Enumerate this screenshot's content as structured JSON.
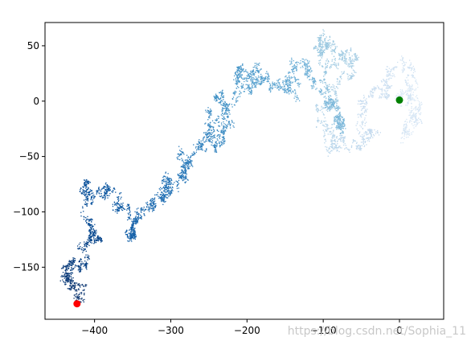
{
  "chart_data": {
    "type": "scatter",
    "title": "",
    "xlabel": "",
    "ylabel": "",
    "xlim": [
      -465,
      58
    ],
    "ylim": [
      -197,
      71
    ],
    "grid": false,
    "xticks": [
      -400,
      -300,
      -200,
      -100,
      0
    ],
    "yticks": [
      -150,
      -100,
      -50,
      0,
      50
    ],
    "xtick_labels": [
      "−400",
      "−300",
      "−200",
      "−100",
      "0"
    ],
    "ytick_labels": [
      "−150",
      "−100",
      "−50",
      "0",
      "50"
    ],
    "point_count": 5000,
    "colormap": "Blues",
    "colors": {
      "start_marker": "#008000",
      "end_marker": "#ff0000",
      "path_light": "#deebf7",
      "path_dark": "#08306b"
    },
    "start_point": {
      "x": 0,
      "y": 1
    },
    "end_point": {
      "x": -423,
      "y": -183
    },
    "path_waypoints": [
      {
        "x": 0,
        "y": 1
      },
      {
        "x": 18,
        "y": 8
      },
      {
        "x": 22,
        "y": -12
      },
      {
        "x": 8,
        "y": -30
      },
      {
        "x": 15,
        "y": 20
      },
      {
        "x": -8,
        "y": 25
      },
      {
        "x": -25,
        "y": 5
      },
      {
        "x": -50,
        "y": -5
      },
      {
        "x": -40,
        "y": -30
      },
      {
        "x": -65,
        "y": -45
      },
      {
        "x": -90,
        "y": -40
      },
      {
        "x": -100,
        "y": -20
      },
      {
        "x": -75,
        "y": 20
      },
      {
        "x": -60,
        "y": 38
      },
      {
        "x": -80,
        "y": 30
      },
      {
        "x": -100,
        "y": 62
      },
      {
        "x": -110,
        "y": 45
      },
      {
        "x": -95,
        "y": 15
      },
      {
        "x": -80,
        "y": -10
      },
      {
        "x": -70,
        "y": -25
      },
      {
        "x": -85,
        "y": -5
      },
      {
        "x": -110,
        "y": 15
      },
      {
        "x": -130,
        "y": 35
      },
      {
        "x": -150,
        "y": 20
      },
      {
        "x": -145,
        "y": 5
      },
      {
        "x": -175,
        "y": 20
      },
      {
        "x": -200,
        "y": 15
      },
      {
        "x": -185,
        "y": 30
      },
      {
        "x": -210,
        "y": 25
      },
      {
        "x": -215,
        "y": 5
      },
      {
        "x": -235,
        "y": -10
      },
      {
        "x": -225,
        "y": -25
      },
      {
        "x": -250,
        "y": -15
      },
      {
        "x": -240,
        "y": -40
      },
      {
        "x": -265,
        "y": -40
      },
      {
        "x": -280,
        "y": -55
      },
      {
        "x": -285,
        "y": -70
      },
      {
        "x": -310,
        "y": -85
      },
      {
        "x": -300,
        "y": -75
      },
      {
        "x": -320,
        "y": -95
      },
      {
        "x": -345,
        "y": -100
      },
      {
        "x": -350,
        "y": -125
      },
      {
        "x": -360,
        "y": -100
      },
      {
        "x": -385,
        "y": -90
      },
      {
        "x": -400,
        "y": -85
      },
      {
        "x": -410,
        "y": -75
      },
      {
        "x": -405,
        "y": -110
      },
      {
        "x": -395,
        "y": -125
      },
      {
        "x": -410,
        "y": -140
      },
      {
        "x": -430,
        "y": -150
      },
      {
        "x": -440,
        "y": -165
      },
      {
        "x": -425,
        "y": -170
      },
      {
        "x": -423,
        "y": -183
      }
    ]
  },
  "watermark": "https://blog.csdn.net/Sophia_11"
}
